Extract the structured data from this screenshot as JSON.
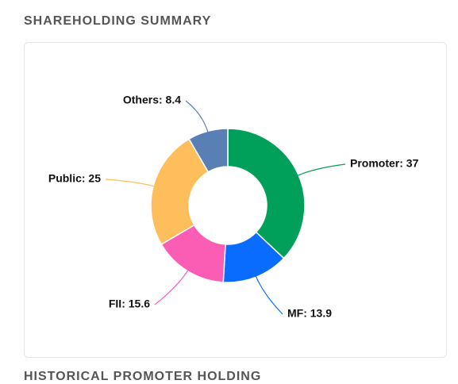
{
  "title": "SHAREHOLDING SUMMARY",
  "next_section_title": "HISTORICAL PROMOTER HOLDING",
  "chart_data": {
    "type": "pie",
    "values": [
      37,
      13.9,
      15.6,
      25,
      8.4
    ],
    "value_labels": [
      "Promoter: 37",
      "MF: 13.9",
      "FII: 15.6",
      "Public: 25",
      "Others: 8.4"
    ],
    "colors": [
      "#00a05a",
      "#0a6cff",
      "#fb5db5",
      "#ffbe5c",
      "#5a7fb5"
    ]
  }
}
